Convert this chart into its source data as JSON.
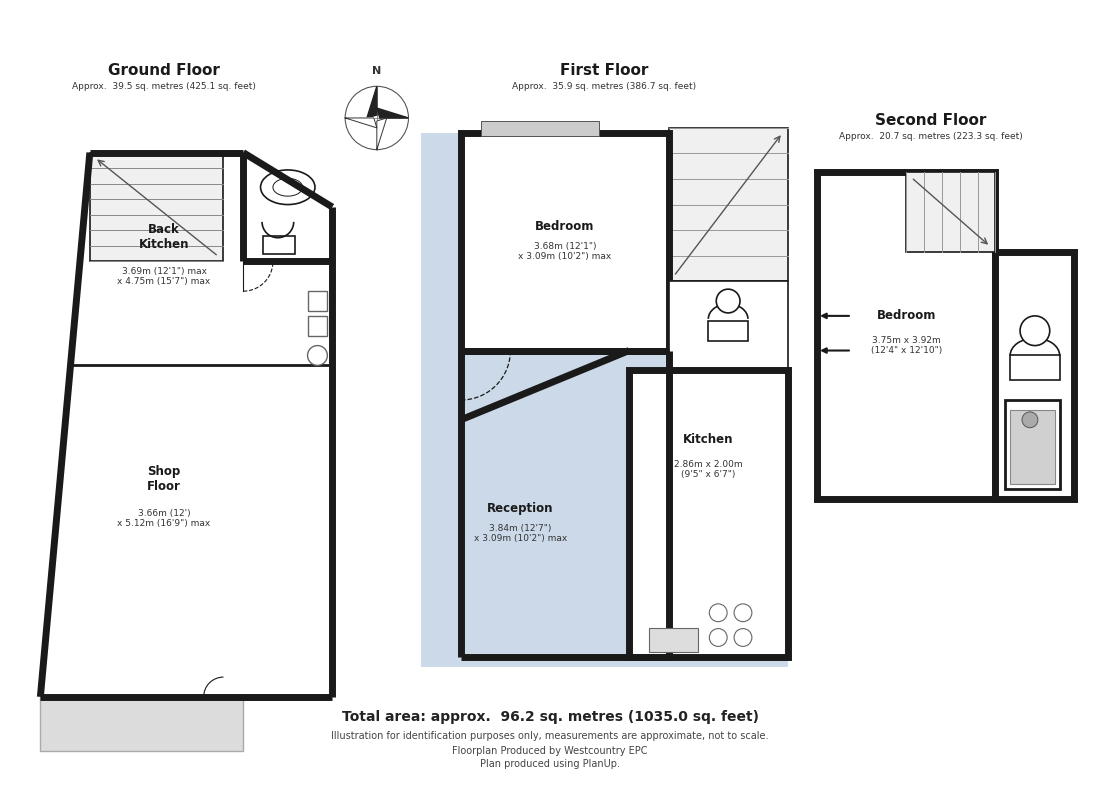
{
  "bg_color": "#ffffff",
  "wall_color": "#1a1a1a",
  "wall_lw": 5.0,
  "thin_lw": 1.2,
  "med_lw": 2.0,
  "floor_blue": "#ccd9e8",
  "stair_gray": "#e8e8e8",
  "fixture_gray": "#d0d0d0",
  "footer_text1": "Total area: approx.  96.2 sq. metres (1035.0 sq. feet)",
  "footer_text2": "Illustration for identification purposes only, measurements are approximate, not to scale.",
  "footer_text3": "Floorplan Produced by Westcountry EPC",
  "footer_text4": "Plan produced using PlanUp."
}
